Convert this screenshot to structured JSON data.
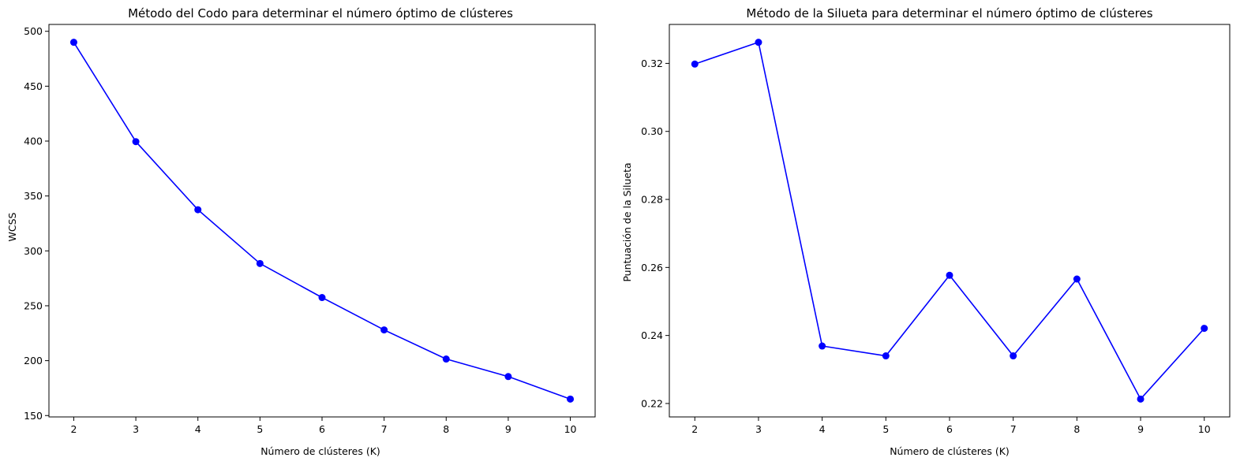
{
  "colors": {
    "line": "#0000ff",
    "marker": "#0000ff",
    "axis": "#000000",
    "background": "#ffffff"
  },
  "chart_data": [
    {
      "type": "line",
      "title": "Método del Codo para determinar el número óptimo de clústeres",
      "xlabel": "Número de clústeres (K)",
      "ylabel": "WCSS",
      "x": [
        2,
        3,
        4,
        5,
        6,
        7,
        8,
        9,
        10
      ],
      "y": [
        490,
        399.5,
        337.5,
        288.5,
        257.5,
        228,
        201.5,
        185.5,
        165
      ],
      "xlim": [
        1.6,
        10.4
      ],
      "ylim": [
        148.75,
        506.25
      ],
      "xticks": [
        "2",
        "3",
        "4",
        "5",
        "6",
        "7",
        "8",
        "9",
        "10"
      ],
      "yticks": [
        "150",
        "200",
        "250",
        "300",
        "350",
        "400",
        "450",
        "500"
      ],
      "marker": "circle",
      "grid": false
    },
    {
      "type": "line",
      "title": "Método de la Silueta para determinar el número óptimo de clústeres",
      "xlabel": "Número de clústeres (K)",
      "ylabel": "Puntuación de la Silueta",
      "x": [
        2,
        3,
        4,
        5,
        6,
        7,
        8,
        9,
        10
      ],
      "y": [
        0.3198,
        0.3262,
        0.2369,
        0.234,
        0.2577,
        0.234,
        0.2566,
        0.2213,
        0.2421
      ],
      "xlim": [
        1.6,
        10.4
      ],
      "ylim": [
        0.21605,
        0.33145
      ],
      "xticks": [
        "2",
        "3",
        "4",
        "5",
        "6",
        "7",
        "8",
        "9",
        "10"
      ],
      "yticks": [
        "0.22",
        "0.24",
        "0.26",
        "0.28",
        "0.30",
        "0.32"
      ],
      "marker": "circle",
      "grid": false
    }
  ]
}
